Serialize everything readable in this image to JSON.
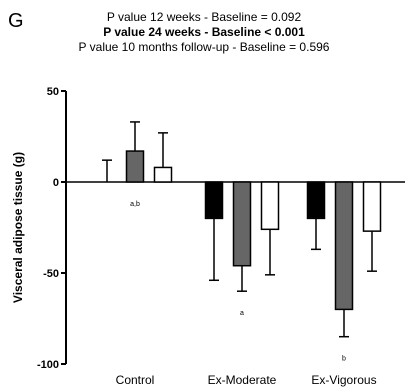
{
  "panel_label": "G",
  "pvalues": [
    {
      "text": "P value 12 weeks -  Baseline = 0.092",
      "bold": false
    },
    {
      "text": "P value 24 weeks -  Baseline < 0.001",
      "bold": true
    },
    {
      "text": "P value 10 months follow-up -  Baseline = 0.596",
      "bold": false
    }
  ],
  "chart_data": {
    "type": "bar",
    "title": "",
    "xlabel": "",
    "ylabel": "Visceral adipose tissue  (g)",
    "ylim": [
      -100,
      50
    ],
    "yticks": [
      50,
      0,
      -50,
      -100
    ],
    "ytick_labels": [
      "50",
      "0",
      "-50",
      "-100"
    ],
    "categories": [
      "Control",
      "Ex-Moderate",
      "Ex-Vigorous"
    ],
    "grid": false,
    "series": [
      {
        "values": [
          0,
          -20,
          -20
        ],
        "error": [
          12,
          34,
          17
        ],
        "fill": "#000000"
      },
      {
        "values": [
          17,
          -46,
          -70
        ],
        "error": [
          16,
          14,
          15
        ],
        "fill": "#666666"
      },
      {
        "values": [
          8,
          -26,
          -27
        ],
        "error": [
          19,
          25,
          22
        ],
        "fill": "#ffffff"
      }
    ],
    "annotations": [
      {
        "category": 0,
        "series": 1,
        "text": "a,b"
      },
      {
        "category": 1,
        "series": 1,
        "text": "a"
      },
      {
        "category": 2,
        "series": 1,
        "text": "b"
      }
    ]
  }
}
